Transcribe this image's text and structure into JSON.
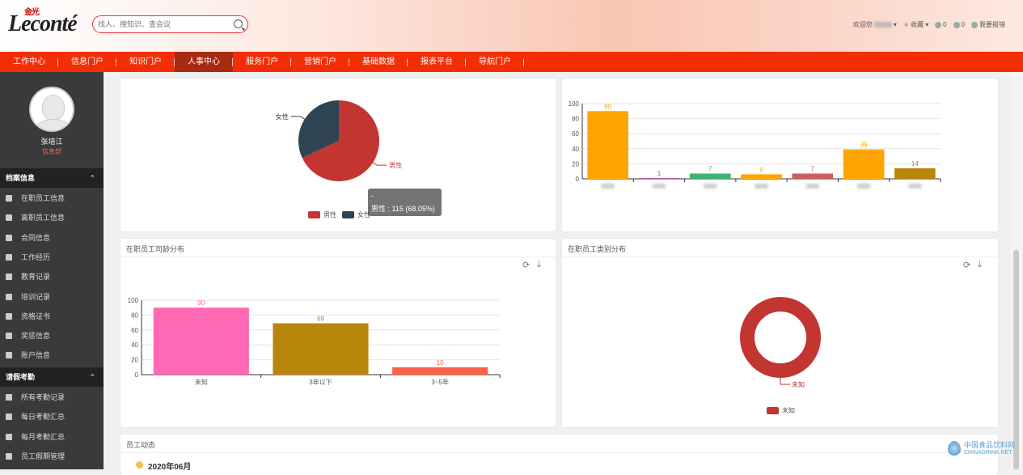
{
  "header": {
    "logo_text": "Leconté",
    "logo_small": "金光",
    "search_placeholder": "找人、搜知识、查会议",
    "welcome": "欢迎您",
    "favorites": "收藏",
    "count1": "0",
    "count2": "0",
    "report": "我要报错"
  },
  "nav": {
    "items": [
      "工作中心",
      "信息门户",
      "知识门户",
      "人事中心",
      "服务门户",
      "营销门户",
      "基础数据",
      "报表平台",
      "导航门户"
    ],
    "active_index": 3
  },
  "user": {
    "name": "张培江",
    "dept": "信息部"
  },
  "sidebar": {
    "section1": "档案信息",
    "items1": [
      "在职员工信息",
      "离职员工信息",
      "合同信息",
      "工作经历",
      "教育记录",
      "培训记录",
      "资格证书",
      "奖惩信息",
      "账户信息"
    ],
    "section2": "请假考勤",
    "items2": [
      "所有考勤记录",
      "每日考勤汇总",
      "每月考勤汇总",
      "员工假期管理"
    ],
    "chevron": "⌃"
  },
  "cards": {
    "age_title": "在职员工司龄分布",
    "type_title": "在职员工类别分布",
    "activity_title": "员工动态",
    "activity_date": "2020年06月"
  },
  "tooltip": {
    "dash": "-",
    "text": "男性 : 115 (68.05%)"
  },
  "icons": {
    "refresh": "refresh-icon",
    "download": "download-icon",
    "search": "search-icon"
  },
  "watermark": {
    "line1": "中国食品饮料网",
    "line2": "CHINADRINK.NET"
  },
  "chart_data": [
    {
      "type": "pie",
      "categories": [
        "男性",
        "女性"
      ],
      "values": [
        115,
        54
      ],
      "colors": [
        "#c23531",
        "#2f4554"
      ],
      "legend": [
        "男性",
        "女性"
      ],
      "legend_placement": "bottom"
    },
    {
      "type": "bar",
      "categories": [
        "",
        "",
        "",
        "",
        "",
        "",
        ""
      ],
      "values": [
        90,
        1,
        7,
        6,
        7,
        39,
        14
      ],
      "colors": [
        "#ffa500",
        "#b44ea3",
        "#3cb371",
        "#ffa500",
        "#cd5c5c",
        "#ffa500",
        "#b8860b"
      ],
      "ylim": [
        0,
        100
      ],
      "yticks": [
        0,
        20,
        40,
        60,
        80,
        100
      ],
      "grid": true
    },
    {
      "type": "bar",
      "title": "在职员工司龄分布",
      "categories": [
        "未知",
        "3年以下",
        "3~5年"
      ],
      "values": [
        90,
        69,
        10
      ],
      "colors": [
        "#ff69b4",
        "#b8860b",
        "#ff6347"
      ],
      "ylim": [
        0,
        100
      ],
      "yticks": [
        0,
        20,
        40,
        60,
        80,
        100
      ],
      "grid": true
    },
    {
      "type": "pie",
      "title": "在职员工类别分布",
      "categories": [
        "未知"
      ],
      "values": [
        1
      ],
      "colors": [
        "#c23531"
      ],
      "legend": [
        "未知"
      ],
      "legend_placement": "bottom"
    }
  ]
}
